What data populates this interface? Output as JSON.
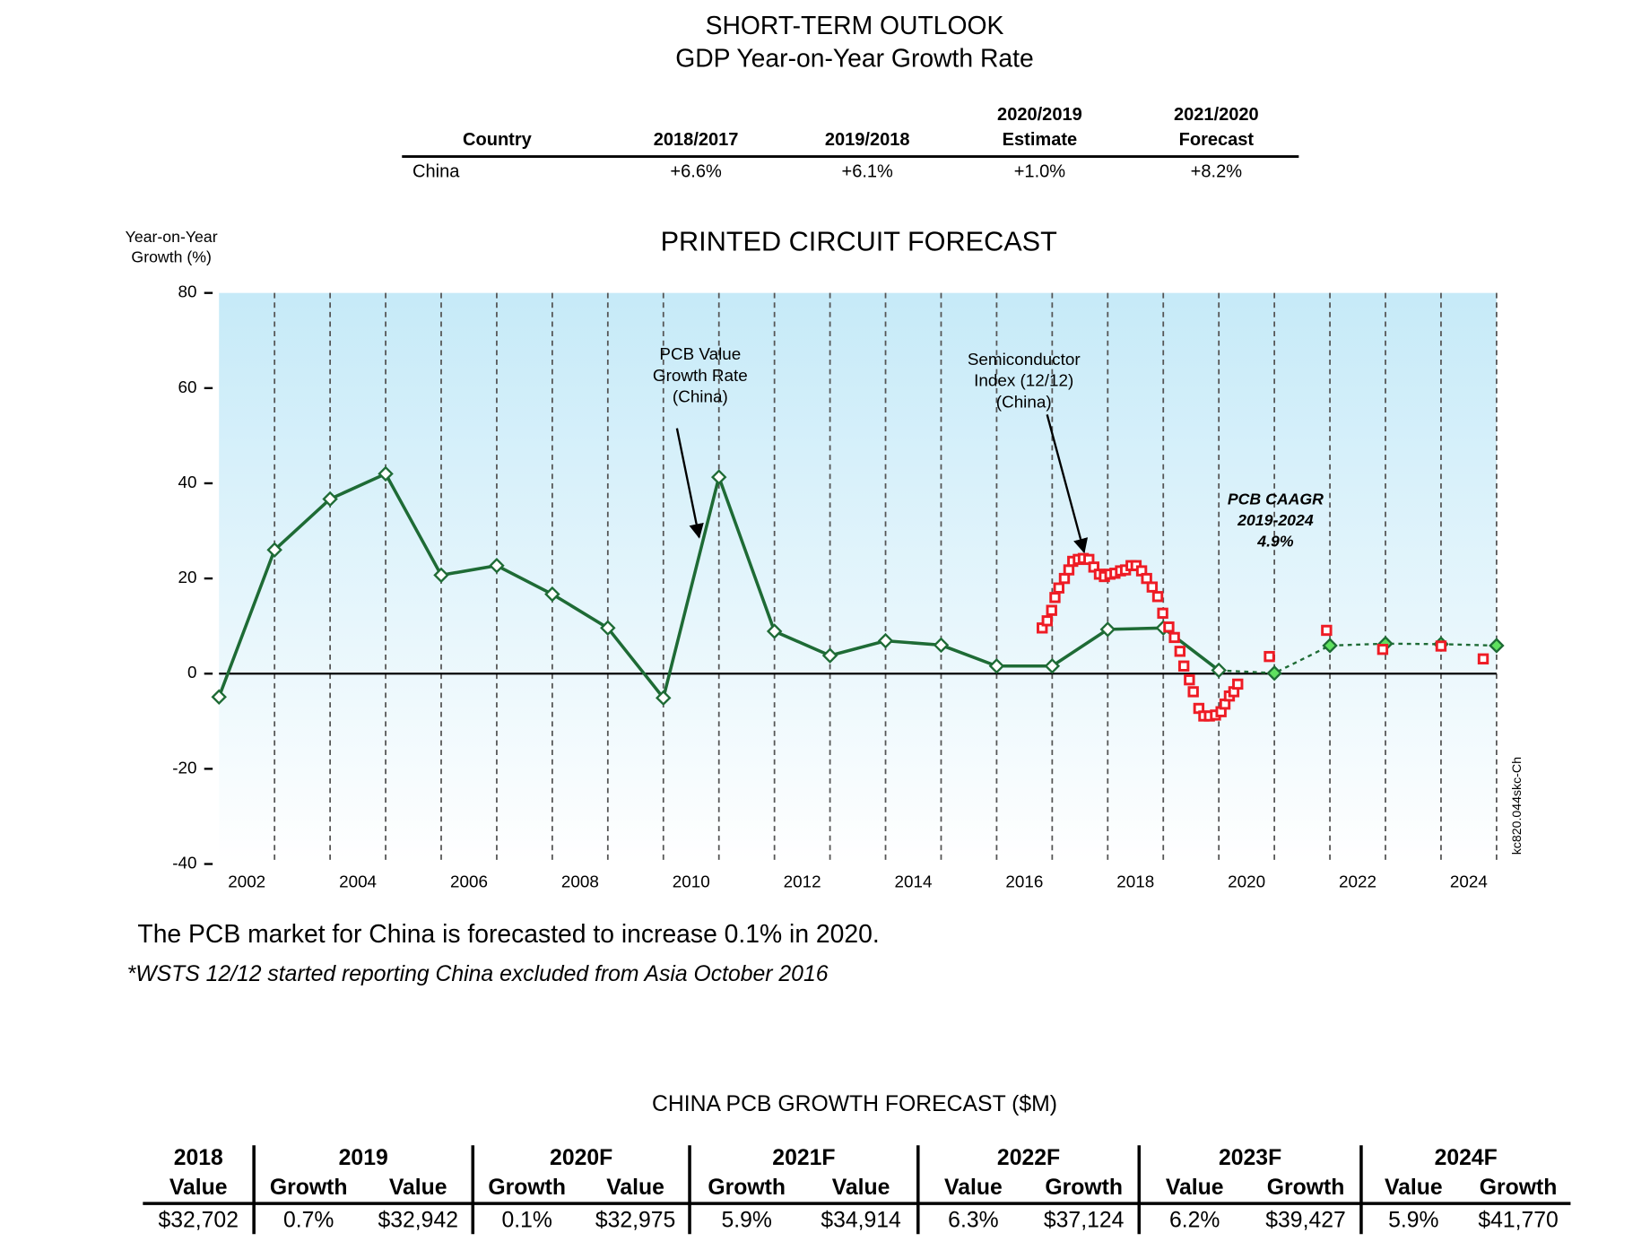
{
  "header": {
    "title": "SHORT-TERM OUTLOOK",
    "subtitle": "GDP Year-on-Year Growth Rate"
  },
  "gdp_table": {
    "columns": [
      [
        "Country"
      ],
      [
        "2018/2017"
      ],
      [
        "2019/2018"
      ],
      [
        "2020/2019",
        "Estimate"
      ],
      [
        "2021/2020",
        "Forecast"
      ]
    ],
    "rows": [
      [
        "China",
        "+6.6%",
        "+6.1%",
        "+1.0%",
        "+8.2%"
      ]
    ]
  },
  "chart_data": {
    "type": "line",
    "title": "PRINTED CIRCUIT FORECAST",
    "y_label": [
      "Year-on-Year",
      "Growth (%)"
    ],
    "xlim": [
      2001,
      2024
    ],
    "xticks": [
      2002,
      2004,
      2006,
      2008,
      2010,
      2012,
      2014,
      2016,
      2018,
      2020,
      2022,
      2024
    ],
    "x_minor_ticks": [
      2003,
      2005,
      2007,
      2009,
      2011,
      2013,
      2015,
      2017,
      2019,
      2021,
      2023
    ],
    "ylim": [
      -40,
      80
    ],
    "yticks": [
      -40,
      -20,
      0,
      20,
      40,
      60,
      80
    ],
    "grid": true,
    "zero_line": true,
    "plot_background": [
      "#c6eaf8",
      "#ffffff"
    ],
    "series": [
      {
        "color": "#1e6b35",
        "marker": "diamond",
        "mode": "lines+markers",
        "dashed_from": 2019,
        "forecast_marker_color": "#5fe05f",
        "annotation": [
          "PCB Value",
          "Growth Rate",
          "(China)"
        ],
        "x": [
          2001,
          2002,
          2003,
          2004,
          2005,
          2006,
          2007,
          2008,
          2009,
          2010,
          2011,
          2012,
          2013,
          2014,
          2015,
          2016,
          2017,
          2018,
          2019,
          2020,
          2021,
          2022,
          2023,
          2024
        ],
        "values": [
          -4.9,
          26,
          36.7,
          42,
          20.7,
          22.7,
          16.7,
          9.6,
          -5.1,
          41.3,
          8.9,
          3.8,
          6.9,
          6.0,
          1.6,
          1.6,
          9.3,
          9.6,
          0.7,
          0.1,
          5.9,
          6.3,
          6.2,
          5.9
        ]
      },
      {
        "color": "#ee1c25",
        "marker": "square",
        "mode": "markers",
        "annotation": [
          "Semiconductor",
          "Index (12/12)",
          "(China)"
        ],
        "x": [
          2015.82,
          2015.91,
          2015.99,
          2016.05,
          2016.12,
          2016.22,
          2016.3,
          2016.37,
          2016.47,
          2016.56,
          2016.66,
          2016.75,
          2016.85,
          2016.94,
          2017.04,
          2017.13,
          2017.23,
          2017.32,
          2017.42,
          2017.51,
          2017.61,
          2017.7,
          2017.8,
          2017.9,
          2017.99,
          2018.1,
          2018.2,
          2018.3,
          2018.37,
          2018.47,
          2018.54,
          2018.64,
          2018.73,
          2018.83,
          2018.94,
          2019.04,
          2019.11,
          2019.19,
          2019.27,
          2019.34,
          2019.91,
          2020.94,
          2021.95,
          2023.0,
          2023.76
        ],
        "values": [
          9.6,
          11.1,
          13.3,
          16.0,
          18.0,
          20.0,
          21.8,
          23.6,
          24.0,
          24.2,
          24.0,
          22.4,
          20.9,
          20.4,
          20.9,
          21.1,
          21.6,
          21.8,
          22.7,
          22.7,
          21.6,
          20.0,
          18.2,
          16.2,
          12.7,
          9.8,
          7.6,
          4.7,
          1.6,
          -1.3,
          -3.8,
          -7.3,
          -8.9,
          -8.9,
          -8.7,
          -8.0,
          -6.4,
          -4.7,
          -3.8,
          -2.2,
          3.6,
          9.1,
          5.1,
          5.8,
          3.1
        ]
      }
    ],
    "cagr_annotation": [
      "PCB CAAGR",
      "2019-2024",
      "4.9%"
    ],
    "source": "kc820.044skc-Ch"
  },
  "notes": [
    "The PCB market for China is forecasted to increase 0.1% in 2020.",
    "*WSTS 12/12 started reporting China excluded from Asia October 2016"
  ],
  "forecast_table": {
    "title": "CHINA PCB GROWTH FORECAST ($M)",
    "groups": [
      {
        "label": "2018",
        "columns": [
          "Value"
        ]
      },
      {
        "label": "2019",
        "columns": [
          "Growth",
          "Value"
        ]
      },
      {
        "label": "2020F",
        "columns": [
          "Growth",
          "Value"
        ]
      },
      {
        "label": "2021F",
        "columns": [
          "Growth",
          "Value"
        ]
      },
      {
        "label": "2022F",
        "columns": [
          "Value",
          "Growth"
        ]
      },
      {
        "label": "2023F",
        "columns": [
          "Value",
          "Growth"
        ]
      },
      {
        "label": "2024F",
        "columns": [
          "Value",
          "Growth"
        ]
      }
    ],
    "rows": [
      [
        "$32,702",
        "0.7%",
        "$32,942",
        "0.1%",
        "$32,975",
        "5.9%",
        "$34,914",
        "6.3%",
        "$37,124",
        "6.2%",
        "$39,427",
        "5.9%",
        "$41,770"
      ]
    ]
  }
}
